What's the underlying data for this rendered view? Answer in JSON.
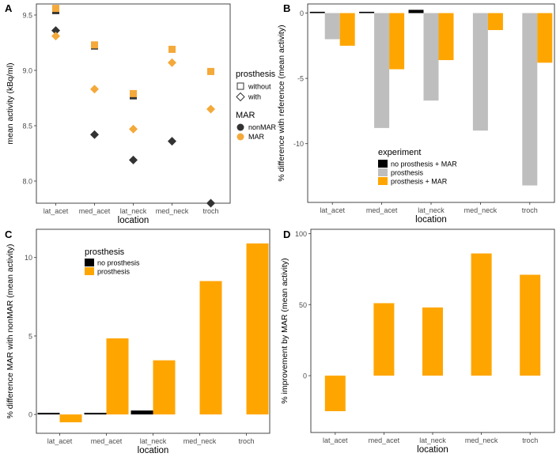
{
  "colors": {
    "black": "#000000",
    "grey": "#bebebe",
    "orange": "#ffa500",
    "nonmar": "#333333",
    "mar": "#f4a93a"
  },
  "chart_data": [
    {
      "panel": "A",
      "type": "scatter",
      "xlabel": "location",
      "ylabel": "mean activity (kBq/ml)",
      "categories": [
        "lat_acet",
        "med_acet",
        "lat_neck",
        "med_neck",
        "troch"
      ],
      "ylim": [
        7.8,
        9.6
      ],
      "yticks": [
        8.0,
        8.5,
        9.0,
        9.5
      ],
      "ytick_labels": [
        "8.0",
        "8.5",
        "9.0",
        "9.5"
      ],
      "series": [
        {
          "name": "without prosthesis, nonMAR",
          "shape": "square",
          "color": "#333333",
          "values": [
            9.54,
            9.22,
            8.77,
            null,
            null
          ]
        },
        {
          "name": "without prosthesis, MAR",
          "shape": "square",
          "color": "#f4a93a",
          "values": [
            9.56,
            9.23,
            8.79,
            9.19,
            8.99
          ]
        },
        {
          "name": "with prosthesis, nonMAR",
          "shape": "diamond",
          "color": "#333333",
          "values": [
            9.36,
            8.42,
            8.19,
            8.36,
            7.8
          ]
        },
        {
          "name": "with prosthesis, MAR",
          "shape": "diamond",
          "color": "#f4a93a",
          "values": [
            9.31,
            8.83,
            8.47,
            9.07,
            8.65
          ]
        }
      ],
      "legend": {
        "title1": "prosthesis",
        "items1": [
          "without",
          "with"
        ],
        "title2": "MAR",
        "items2": [
          "nonMAR",
          "MAR"
        ]
      }
    },
    {
      "panel": "B",
      "type": "bar",
      "xlabel": "location",
      "ylabel": "% difference with reference (mean activity)",
      "categories": [
        "lat_acet",
        "med_acet",
        "lat_neck",
        "med_neck",
        "troch"
      ],
      "ylim": [
        -14.5,
        0.7
      ],
      "yticks": [
        0,
        -5,
        -10
      ],
      "ytick_labels": [
        "0",
        "-5",
        "-10"
      ],
      "series": [
        {
          "name": "no prosthesis + MAR",
          "color": "#000000",
          "values": [
            0.1,
            0.1,
            0.25,
            null,
            null
          ]
        },
        {
          "name": "prosthesis",
          "color": "#bebebe",
          "values": [
            -2.0,
            -8.8,
            -6.7,
            -9.0,
            -13.2
          ]
        },
        {
          "name": "prosthesis + MAR",
          "color": "#ffa500",
          "values": [
            -2.5,
            -4.3,
            -3.6,
            -1.3,
            -3.8
          ]
        }
      ],
      "legend_title": "experiment"
    },
    {
      "panel": "C",
      "type": "bar",
      "xlabel": "location",
      "ylabel": "% difference MAR with nonMAR (mean activity)",
      "categories": [
        "lat_acet",
        "med_acet",
        "lat_neck",
        "med_neck",
        "troch"
      ],
      "ylim": [
        -1.2,
        11.8
      ],
      "yticks": [
        0,
        5,
        10
      ],
      "ytick_labels": [
        "0",
        "5",
        "10"
      ],
      "series": [
        {
          "name": "no prosthesis",
          "color": "#000000",
          "values": [
            0.1,
            0.1,
            0.25,
            null,
            null
          ]
        },
        {
          "name": "prosthesis",
          "color": "#ffa500",
          "values": [
            -0.5,
            4.85,
            3.45,
            8.5,
            10.9
          ]
        }
      ],
      "legend_title": "prosthesis"
    },
    {
      "panel": "D",
      "type": "bar",
      "xlabel": "location",
      "ylabel": "% improvement by MAR (mean activity)",
      "categories": [
        "lat_acet",
        "med_acet",
        "lat_neck",
        "med_neck",
        "troch"
      ],
      "ylim": [
        -40,
        103
      ],
      "yticks": [
        0,
        50,
        100
      ],
      "ytick_labels": [
        "0",
        "50",
        "100"
      ],
      "series": [
        {
          "name": "improvement",
          "color": "#ffa500",
          "values": [
            -25,
            51,
            48,
            86,
            71
          ]
        }
      ]
    }
  ]
}
